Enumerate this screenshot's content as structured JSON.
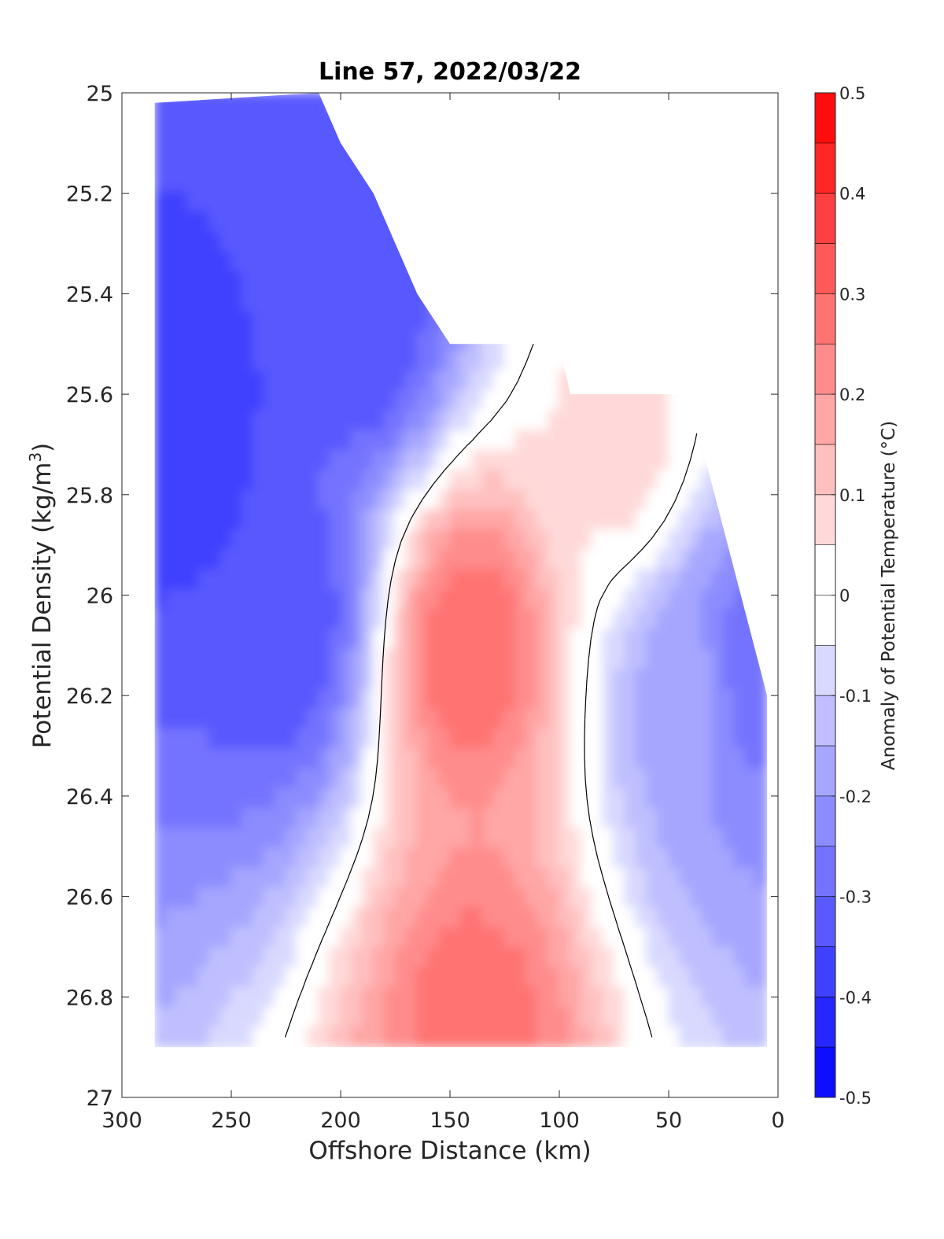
{
  "chart_data": {
    "type": "heatmap",
    "title": "Line 57, 2022/03/22",
    "xlabel": "Offshore Distance (km)",
    "ylabel": "Potential Density (kg/m",
    "ylabel_sup": "3",
    "ylabel_close": ")",
    "colorbar_label": "Anomaly of Potential Temperature (°C)",
    "xlim": [
      300,
      0
    ],
    "ylim": [
      25,
      27
    ],
    "x_reversed": true,
    "y_reversed": true,
    "x_ticks": [
      300,
      250,
      200,
      150,
      100,
      50,
      0
    ],
    "y_ticks": [
      25,
      25.2,
      25.4,
      25.6,
      25.8,
      26,
      26.2,
      26.4,
      26.6,
      26.8,
      27
    ],
    "x_tick_labels": [
      "300",
      "250",
      "200",
      "150",
      "100",
      "50",
      "0"
    ],
    "y_tick_labels": [
      "25",
      "25.2",
      "25.4",
      "25.6",
      "25.8",
      "26",
      "26.2",
      "26.4",
      "26.6",
      "26.8",
      "27"
    ],
    "colorbar_range": [
      -0.5,
      0.5
    ],
    "colorbar_ticks": [
      0.5,
      0.4,
      0.3,
      0.2,
      0.1,
      0,
      -0.1,
      -0.2,
      -0.3,
      -0.4,
      -0.5
    ],
    "colorbar_tick_labels": [
      "0.5",
      "0.4",
      "0.3",
      "0.2",
      "0.1",
      "0",
      "-0.1",
      "-0.2",
      "-0.3",
      "-0.4",
      "-0.5"
    ],
    "colormap": "blue-white-red",
    "color_negative": "#0000ff",
    "color_zero": "#ffffff",
    "color_positive": "#ff0000",
    "contour_levels": 20,
    "zero_contour_color": "#000000",
    "grid": false,
    "data_extent": {
      "x_range": [
        285,
        5
      ],
      "sigma_bottom": 26.9,
      "top_boundary": [
        {
          "x": 285,
          "sigma": 25.02
        },
        {
          "x": 210,
          "sigma": 25.0
        },
        {
          "x": 200,
          "sigma": 25.1
        },
        {
          "x": 185,
          "sigma": 25.2
        },
        {
          "x": 165,
          "sigma": 25.4
        },
        {
          "x": 150,
          "sigma": 25.5
        },
        {
          "x": 100,
          "sigma": 25.5
        },
        {
          "x": 95,
          "sigma": 25.6
        },
        {
          "x": 45,
          "sigma": 25.6
        },
        {
          "x": 40,
          "sigma": 25.65
        },
        {
          "x": 35,
          "sigma": 25.7
        },
        {
          "x": 5,
          "sigma": 26.2
        }
      ]
    },
    "anomaly_features": [
      {
        "name": "offshore cold core",
        "x": 275,
        "sigma": 25.65,
        "anomaly": -0.4
      },
      {
        "name": "cold core 2",
        "x": 225,
        "sigma": 26.05,
        "anomaly": -0.35
      },
      {
        "name": "cold core 3",
        "x": 190,
        "sigma": 25.45,
        "anomaly": -0.35
      },
      {
        "name": "warm core",
        "x": 141,
        "sigma": 26.1,
        "anomaly": 0.3
      },
      {
        "name": "deep warm core",
        "x": 138,
        "sigma": 26.85,
        "anomaly": 0.28
      },
      {
        "name": "nearshore cold core",
        "x": 12,
        "sigma": 26.15,
        "anomaly": -0.3
      },
      {
        "name": "nearshore negative",
        "x": 38,
        "sigma": 26.2,
        "anomaly": -0.18
      },
      {
        "name": "shallow warm patch",
        "x": 70,
        "sigma": 25.7,
        "anomaly": 0.08
      }
    ]
  }
}
